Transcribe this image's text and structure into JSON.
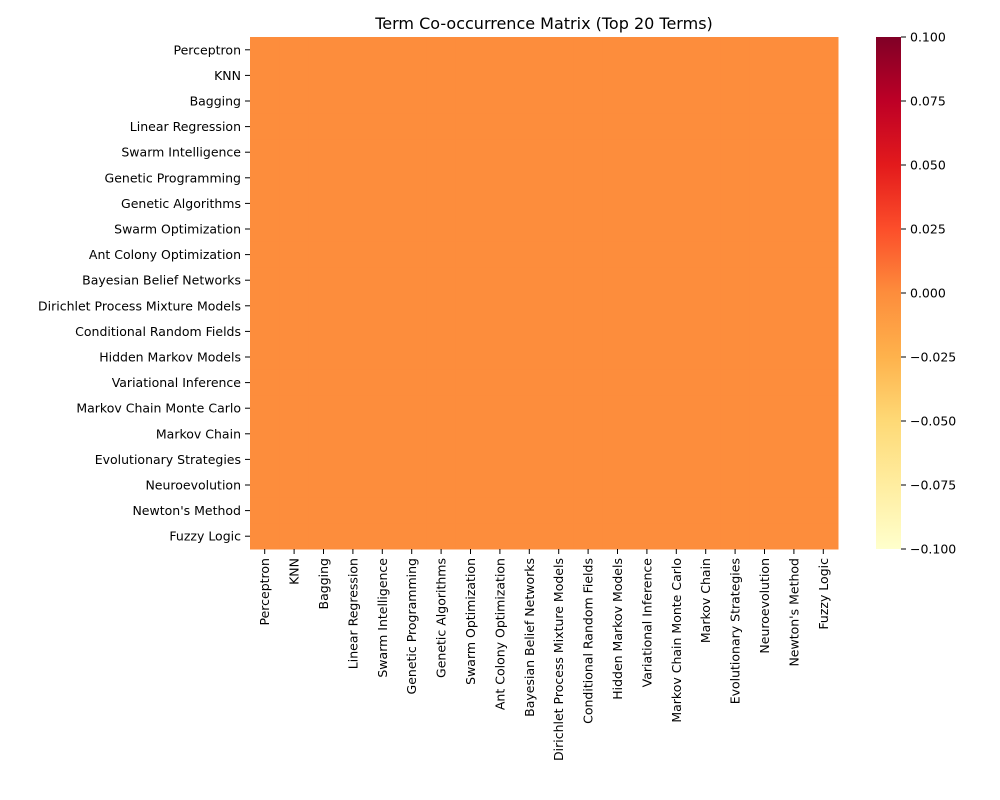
{
  "chart_data": {
    "type": "heatmap",
    "title": "Term Co-occurrence Matrix (Top 20 Terms)",
    "xlabel": "",
    "ylabel": "",
    "rows": [
      "Perceptron",
      "KNN",
      "Bagging",
      "Linear Regression",
      "Swarm Intelligence",
      "Genetic Programming",
      "Genetic Algorithms",
      "Swarm Optimization",
      "Ant Colony Optimization",
      "Bayesian Belief Networks",
      "Dirichlet Process Mixture Models",
      "Conditional Random Fields",
      "Hidden Markov Models",
      "Variational Inference",
      "Markov Chain Monte Carlo",
      "Markov Chain",
      "Evolutionary Strategies",
      "Neuroevolution",
      "Newton's Method",
      "Fuzzy Logic"
    ],
    "columns": [
      "Perceptron",
      "KNN",
      "Bagging",
      "Linear Regression",
      "Swarm Intelligence",
      "Genetic Programming",
      "Genetic Algorithms",
      "Swarm Optimization",
      "Ant Colony Optimization",
      "Bayesian Belief Networks",
      "Dirichlet Process Mixture Models",
      "Conditional Random Fields",
      "Hidden Markov Models",
      "Variational Inference",
      "Markov Chain Monte Carlo",
      "Markov Chain",
      "Evolutionary Strategies",
      "Neuroevolution",
      "Newton's Method",
      "Fuzzy Logic"
    ],
    "values": [
      [
        0,
        0,
        0,
        0,
        0,
        0,
        0,
        0,
        0,
        0,
        0,
        0,
        0,
        0,
        0,
        0,
        0,
        0,
        0,
        0
      ],
      [
        0,
        0,
        0,
        0,
        0,
        0,
        0,
        0,
        0,
        0,
        0,
        0,
        0,
        0,
        0,
        0,
        0,
        0,
        0,
        0
      ],
      [
        0,
        0,
        0,
        0,
        0,
        0,
        0,
        0,
        0,
        0,
        0,
        0,
        0,
        0,
        0,
        0,
        0,
        0,
        0,
        0
      ],
      [
        0,
        0,
        0,
        0,
        0,
        0,
        0,
        0,
        0,
        0,
        0,
        0,
        0,
        0,
        0,
        0,
        0,
        0,
        0,
        0
      ],
      [
        0,
        0,
        0,
        0,
        0,
        0,
        0,
        0,
        0,
        0,
        0,
        0,
        0,
        0,
        0,
        0,
        0,
        0,
        0,
        0
      ],
      [
        0,
        0,
        0,
        0,
        0,
        0,
        0,
        0,
        0,
        0,
        0,
        0,
        0,
        0,
        0,
        0,
        0,
        0,
        0,
        0
      ],
      [
        0,
        0,
        0,
        0,
        0,
        0,
        0,
        0,
        0,
        0,
        0,
        0,
        0,
        0,
        0,
        0,
        0,
        0,
        0,
        0
      ],
      [
        0,
        0,
        0,
        0,
        0,
        0,
        0,
        0,
        0,
        0,
        0,
        0,
        0,
        0,
        0,
        0,
        0,
        0,
        0,
        0
      ],
      [
        0,
        0,
        0,
        0,
        0,
        0,
        0,
        0,
        0,
        0,
        0,
        0,
        0,
        0,
        0,
        0,
        0,
        0,
        0,
        0
      ],
      [
        0,
        0,
        0,
        0,
        0,
        0,
        0,
        0,
        0,
        0,
        0,
        0,
        0,
        0,
        0,
        0,
        0,
        0,
        0,
        0
      ],
      [
        0,
        0,
        0,
        0,
        0,
        0,
        0,
        0,
        0,
        0,
        0,
        0,
        0,
        0,
        0,
        0,
        0,
        0,
        0,
        0
      ],
      [
        0,
        0,
        0,
        0,
        0,
        0,
        0,
        0,
        0,
        0,
        0,
        0,
        0,
        0,
        0,
        0,
        0,
        0,
        0,
        0
      ],
      [
        0,
        0,
        0,
        0,
        0,
        0,
        0,
        0,
        0,
        0,
        0,
        0,
        0,
        0,
        0,
        0,
        0,
        0,
        0,
        0
      ],
      [
        0,
        0,
        0,
        0,
        0,
        0,
        0,
        0,
        0,
        0,
        0,
        0,
        0,
        0,
        0,
        0,
        0,
        0,
        0,
        0
      ],
      [
        0,
        0,
        0,
        0,
        0,
        0,
        0,
        0,
        0,
        0,
        0,
        0,
        0,
        0,
        0,
        0,
        0,
        0,
        0,
        0
      ],
      [
        0,
        0,
        0,
        0,
        0,
        0,
        0,
        0,
        0,
        0,
        0,
        0,
        0,
        0,
        0,
        0,
        0,
        0,
        0,
        0
      ],
      [
        0,
        0,
        0,
        0,
        0,
        0,
        0,
        0,
        0,
        0,
        0,
        0,
        0,
        0,
        0,
        0,
        0,
        0,
        0,
        0
      ],
      [
        0,
        0,
        0,
        0,
        0,
        0,
        0,
        0,
        0,
        0,
        0,
        0,
        0,
        0,
        0,
        0,
        0,
        0,
        0,
        0
      ],
      [
        0,
        0,
        0,
        0,
        0,
        0,
        0,
        0,
        0,
        0,
        0,
        0,
        0,
        0,
        0,
        0,
        0,
        0,
        0,
        0
      ],
      [
        0,
        0,
        0,
        0,
        0,
        0,
        0,
        0,
        0,
        0,
        0,
        0,
        0,
        0,
        0,
        0,
        0,
        0,
        0,
        0
      ]
    ],
    "colorbar": {
      "colormap": "YlOrRd",
      "range": [
        -0.1,
        0.1
      ],
      "ticks": [
        "−0.100",
        "−0.075",
        "−0.050",
        "−0.025",
        "0.000",
        "0.025",
        "0.050",
        "0.075",
        "0.100"
      ],
      "tick_values": [
        -0.1,
        -0.075,
        -0.05,
        -0.025,
        0,
        0.025,
        0.05,
        0.075,
        0.1
      ],
      "colors": [
        "#ffffcc",
        "#ffeda0",
        "#fed976",
        "#feb24c",
        "#fd8d3c",
        "#fc4e2a",
        "#e31a1c",
        "#bd0026",
        "#800026"
      ]
    },
    "grid": false,
    "legend": "colorbar-right"
  }
}
